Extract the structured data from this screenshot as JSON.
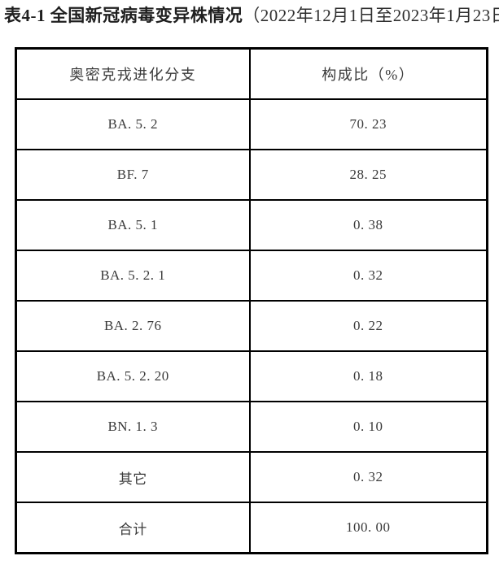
{
  "title": {
    "main": "表4-1 全国新冠病毒变异株情况",
    "period": "（2022年12月1日至2023年1月23日）"
  },
  "table": {
    "headers": [
      "奥密克戎进化分支",
      "构成比（%）"
    ],
    "rows": [
      {
        "branch": "BA. 5. 2",
        "percent": "70. 23"
      },
      {
        "branch": "BF. 7",
        "percent": "28. 25"
      },
      {
        "branch": "BA. 5. 1",
        "percent": "0. 38"
      },
      {
        "branch": "BA. 5. 2. 1",
        "percent": "0. 32"
      },
      {
        "branch": "BA. 2. 76",
        "percent": "0. 22"
      },
      {
        "branch": "BA. 5. 2. 20",
        "percent": "0. 18"
      },
      {
        "branch": "BN. 1. 3",
        "percent": "0. 10"
      },
      {
        "branch": "其它",
        "percent": "0. 32"
      },
      {
        "branch": "合计",
        "percent": "100. 00"
      }
    ]
  },
  "colors": {
    "background": "#ffffff",
    "border": "#000000",
    "cell_text": "#3a3a3a",
    "title_text": "#1f1f1f"
  },
  "chart_data": {
    "type": "table",
    "title": "表4-1 全国新冠病毒变异株情况（2022年12月1日至2023年1月23日）",
    "columns": [
      "奥密克戎进化分支",
      "构成比（%）"
    ],
    "rows": [
      [
        "BA.5.2",
        70.23
      ],
      [
        "BF.7",
        28.25
      ],
      [
        "BA.5.1",
        0.38
      ],
      [
        "BA.5.2.1",
        0.32
      ],
      [
        "BA.2.76",
        0.22
      ],
      [
        "BA.5.2.20",
        0.18
      ],
      [
        "BN.1.3",
        0.1
      ],
      [
        "其它",
        0.32
      ],
      [
        "合计",
        100.0
      ]
    ],
    "total_row_label": "合计",
    "total_value": 100.0
  }
}
